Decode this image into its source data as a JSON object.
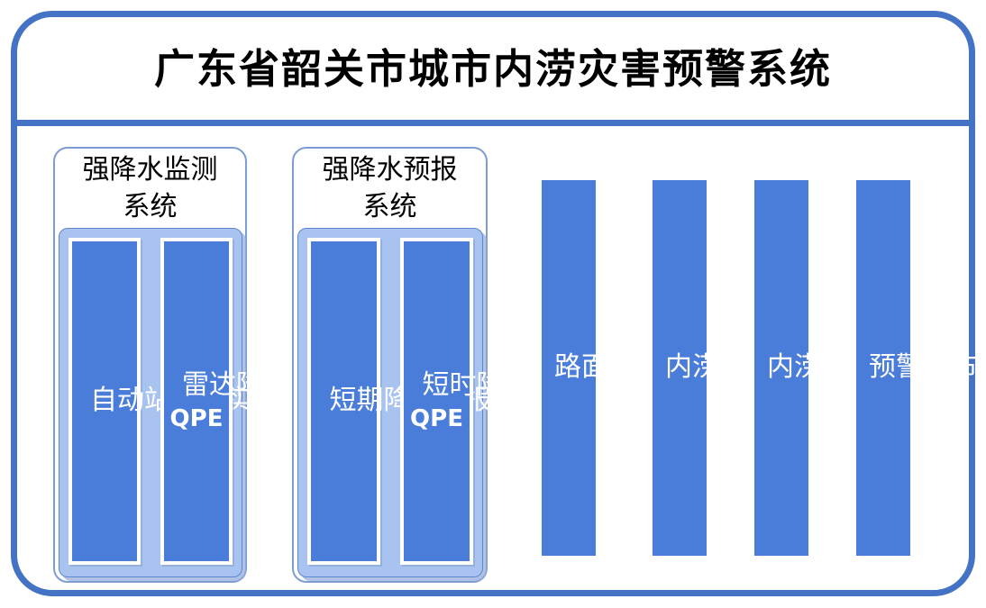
{
  "title": "广东省韶关市城市内涝灾害预警系统",
  "colors": {
    "accent_border": "#4472C4",
    "bar_fill": "#4A7CD9",
    "group_fill": "#A9C3F0",
    "bar_text": "#ffffff",
    "title_text": "#000000"
  },
  "groups": [
    {
      "header": "强降水监测系统",
      "header_lines": [
        "强降水监测",
        "系统"
      ],
      "bars": [
        {
          "text": "自动站监测实时降水",
          "suffix": ""
        },
        {
          "text": "雷达降水定量估测",
          "suffix": "QPE"
        }
      ]
    },
    {
      "header": "强降水预报系统",
      "header_lines": [
        "强降水预报",
        "系统"
      ],
      "bars": [
        {
          "text": "短期降水预报",
          "suffix": ""
        },
        {
          "text": "短时降水预报",
          "suffix": "QPE"
        }
      ]
    }
  ],
  "standalone_bars": [
    {
      "text": "路面水位监测系统"
    },
    {
      "text": "内涝预报系统"
    },
    {
      "text": "内涝预警分析"
    },
    {
      "text": "预警发布系统"
    }
  ]
}
